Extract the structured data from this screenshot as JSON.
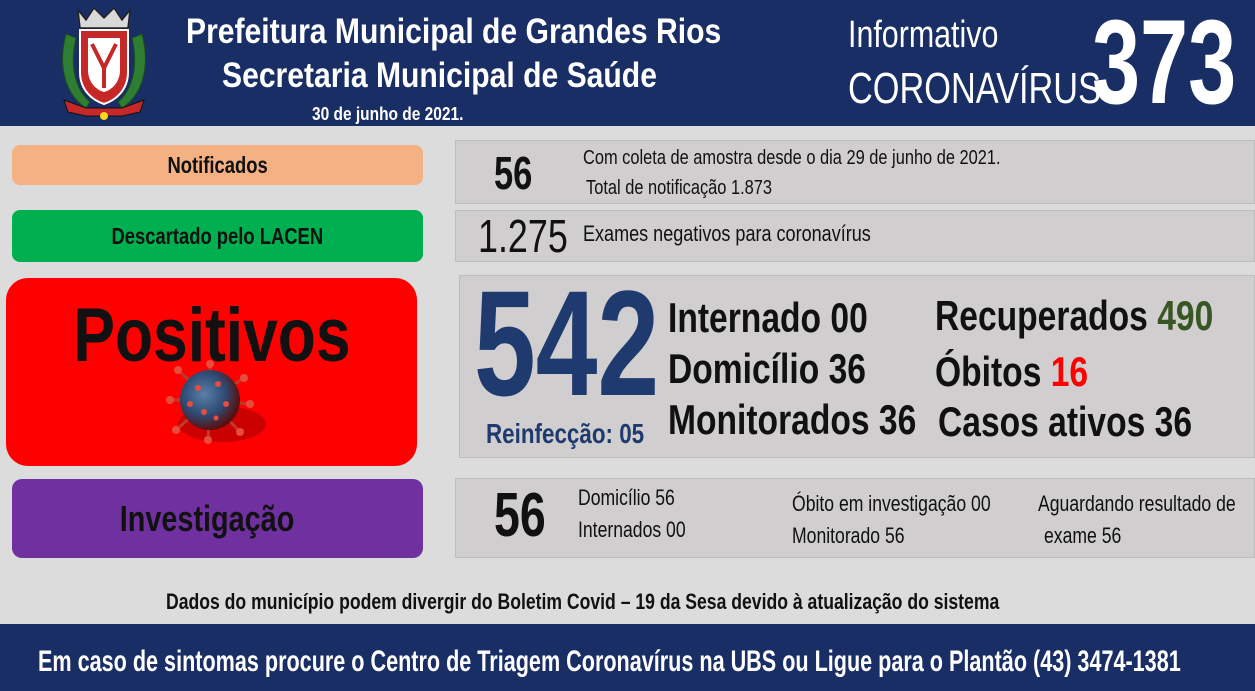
{
  "header": {
    "title_line1": "Prefeitura Municipal de Grandes Rios",
    "title_line2": "Secretaria Municipal de Saúde",
    "date": "30 de junho de 2021.",
    "informativo": "Informativo",
    "coronavirus": "CORONAVÍRUS",
    "bulletin_number": "373"
  },
  "notificados": {
    "label": "Notificados",
    "value": "56",
    "line1": "Com coleta de amostra desde o dia 29 de junho de 2021.",
    "line2": "Total de notificação 1.873"
  },
  "descartado": {
    "label": "Descartado  pelo LACEN",
    "value": "1.275",
    "text": "Exames negativos  para coronavírus"
  },
  "positivos": {
    "label": "Positivos",
    "value": "542",
    "reinfeccao": "Reinfecção: 05",
    "internado_label": "Internado",
    "internado_value": "00",
    "domicilio_label": "Domicílio",
    "domicilio_value": "36",
    "monitorados_label": "Monitorados",
    "monitorados_value": "36",
    "recuperados_label": "Recuperados",
    "recuperados_value": "490",
    "obitos_label": "Óbitos",
    "obitos_value": "16",
    "ativos_label": "Casos ativos",
    "ativos_value": "36"
  },
  "investigacao": {
    "label": "Investigação",
    "value": "56",
    "domicilio": "Domicílio 56",
    "internados": "Internados 00",
    "obito": "Óbito  em investigação  00",
    "monitorado": "Monitorado 56",
    "aguardando1": "Aguardando resultado de",
    "aguardando2": "exame 56"
  },
  "disclaimer": "Dados do município  podem  divergir  do Boletim  Covid – 19 da Sesa devido à atualização  do sistema",
  "footer": "Em caso de sintomas  procure  o Centro de Triagem  Coronavírus  na UBS ou Ligue  para  o Plantão  (43) 3474-1381",
  "colors": {
    "header_bg": "#1a2e66",
    "notificados": "#f4b183",
    "descartado": "#00b050",
    "positivos": "#ff0000",
    "investigacao": "#7030a0",
    "number_blue": "#1f3a6e",
    "recovered_green": "#375623",
    "deaths_red": "#ff0000"
  },
  "icons": {
    "crest": "municipal-coat-of-arms",
    "virus": "coronavirus-illustration"
  }
}
